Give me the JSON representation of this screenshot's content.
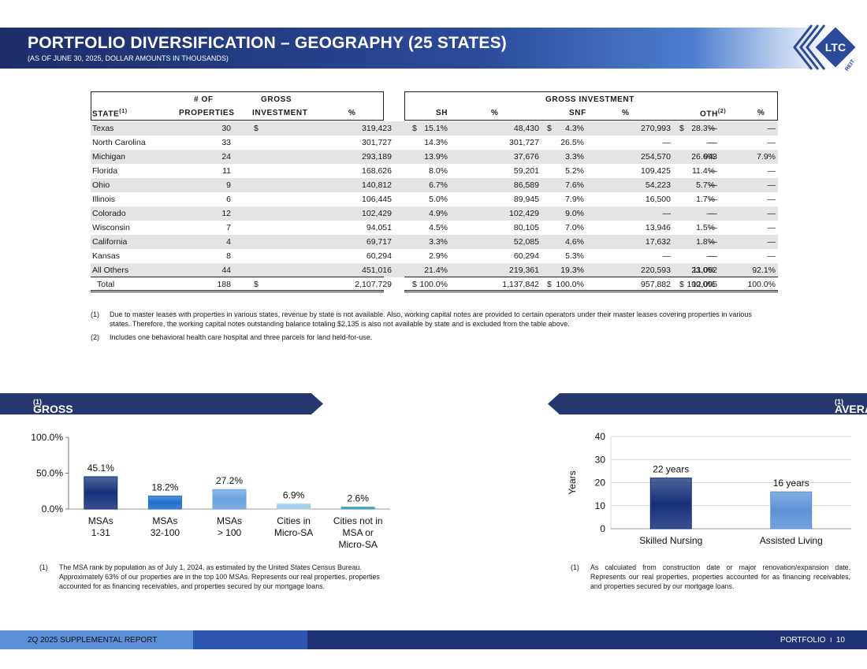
{
  "header": {
    "title": "PORTFOLIO DIVERSIFICATION – GEOGRAPHY (25 STATES)",
    "subtitle": "(AS OF JUNE 30, 2025, DOLLAR AMOUNTS IN THOUSANDS)",
    "logo_text": "LTC",
    "logo_sub": "REIT"
  },
  "table": {
    "headers": {
      "state": "STATE",
      "state_sup": "(1)",
      "num_of": "# OF",
      "properties": "PROPERTIES",
      "gross": "GROSS",
      "investment": "INVESTMENT",
      "pct": "%",
      "gross_investment": "GROSS INVESTMENT",
      "sh": "SH",
      "snf": "SNF",
      "oth": "OTH",
      "oth_sup": "(2)"
    },
    "rows": [
      {
        "state": "Texas",
        "props": "30",
        "d1": "$",
        "inv": "319,423",
        "pct": "15.1%",
        "d2": "$",
        "sh": "48,430",
        "shp": "4.3%",
        "d3": "$",
        "snf": "270,993",
        "snfp": "28.3%",
        "d4": "$",
        "oth": "—",
        "othp": "—"
      },
      {
        "state": "North Carolina",
        "props": "33",
        "d1": "",
        "inv": "301,727",
        "pct": "14.3%",
        "d2": "",
        "sh": "301,727",
        "shp": "26.5%",
        "d3": "",
        "snf": "—",
        "snfp": "—",
        "d4": "",
        "oth": "—",
        "othp": "—"
      },
      {
        "state": "Michigan",
        "props": "24",
        "d1": "",
        "inv": "293,189",
        "pct": "13.9%",
        "d2": "",
        "sh": "37,676",
        "shp": "3.3%",
        "d3": "",
        "snf": "254,570",
        "snfp": "26.6%",
        "d4": "",
        "oth": "943",
        "othp": "7.9%"
      },
      {
        "state": "Florida",
        "props": "11",
        "d1": "",
        "inv": "168,626",
        "pct": "8.0%",
        "d2": "",
        "sh": "59,201",
        "shp": "5.2%",
        "d3": "",
        "snf": "109,425",
        "snfp": "11.4%",
        "d4": "",
        "oth": "—",
        "othp": "—"
      },
      {
        "state": "Ohio",
        "props": "9",
        "d1": "",
        "inv": "140,812",
        "pct": "6.7%",
        "d2": "",
        "sh": "86,589",
        "shp": "7.6%",
        "d3": "",
        "snf": "54,223",
        "snfp": "5.7%",
        "d4": "",
        "oth": "—",
        "othp": "—"
      },
      {
        "state": "Illinois",
        "props": "6",
        "d1": "",
        "inv": "106,445",
        "pct": "5.0%",
        "d2": "",
        "sh": "89,945",
        "shp": "7.9%",
        "d3": "",
        "snf": "16,500",
        "snfp": "1.7%",
        "d4": "",
        "oth": "—",
        "othp": "—"
      },
      {
        "state": "Colorado",
        "props": "12",
        "d1": "",
        "inv": "102,429",
        "pct": "4.9%",
        "d2": "",
        "sh": "102,429",
        "shp": "9.0%",
        "d3": "",
        "snf": "—",
        "snfp": "—",
        "d4": "",
        "oth": "—",
        "othp": "—"
      },
      {
        "state": "Wisconsin",
        "props": "7",
        "d1": "",
        "inv": "94,051",
        "pct": "4.5%",
        "d2": "",
        "sh": "80,105",
        "shp": "7.0%",
        "d3": "",
        "snf": "13,946",
        "snfp": "1.5%",
        "d4": "",
        "oth": "—",
        "othp": "—"
      },
      {
        "state": "California",
        "props": "4",
        "d1": "",
        "inv": "69,717",
        "pct": "3.3%",
        "d2": "",
        "sh": "52,085",
        "shp": "4.6%",
        "d3": "",
        "snf": "17,632",
        "snfp": "1.8%",
        "d4": "",
        "oth": "—",
        "othp": "—"
      },
      {
        "state": "Kansas",
        "props": "8",
        "d1": "",
        "inv": "60,294",
        "pct": "2.9%",
        "d2": "",
        "sh": "60,294",
        "shp": "5.3%",
        "d3": "",
        "snf": "—",
        "snfp": "—",
        "d4": "",
        "oth": "—",
        "othp": "—"
      },
      {
        "state": "All Others",
        "props": "44",
        "d1": "",
        "inv": "451,016",
        "pct": "21.4%",
        "d2": "",
        "sh": "219,361",
        "shp": "19.3%",
        "d3": "",
        "snf": "220,593",
        "snfp": "23.0%",
        "d4": "",
        "oth": "11,062",
        "othp": "92.1%"
      }
    ],
    "total": {
      "state": "Total",
      "props": "188",
      "d1": "$",
      "inv": "2,107,729",
      "pct": "100.0%",
      "d2": "$",
      "sh": "1,137,842",
      "shp": "100.0%",
      "d3": "$",
      "snf": "957,882",
      "snfp": "100.0%",
      "d4": "$",
      "oth": "12,005",
      "othp": "100.0%"
    }
  },
  "notes": [
    {
      "num": "(1)",
      "text": "Due to master leases with properties in various states, revenue by state is not available. Also, working capital notes are provided to certain operators under their master leases covering properties in various states. Therefore, the working capital notes outstanding balance totaling $2,135 is also not available by state and is excluded from the table above."
    },
    {
      "num": "(2)",
      "text": "Includes one behavioral health care hospital and three parcels for land held-for-use."
    }
  ],
  "msa_section": {
    "banner": "GROSS PORTFOLIO BY MSA",
    "banner_sup": "(1)",
    "footnote_num": "(1)",
    "footnote": "The MSA rank by population as of July 1, 2024, as estimated by the United States Census Bureau. Approximately 63% of our properties are in the top 100 MSAs. Represents our real properties, properties accounted for as financing receivables, and properties secured by our mortgage loans."
  },
  "age_section": {
    "banner": "AVERAGE PORTFOLIO AGE",
    "banner_sup": "(1)",
    "footnote_num": "(1)",
    "footnote": "As calculated from construction date or major renovation/expansion date. Represents our real properties, properties accounted for as financing receivables, and properties secured by our mortgage loans."
  },
  "chart_data": [
    {
      "type": "bar",
      "categories": [
        "MSAs\n1-31",
        "MSAs\n32-100",
        "MSAs\n> 100",
        "Cities in\nMicro-SA",
        "Cities not in\nMSA or\nMicro-SA"
      ],
      "values": [
        45.1,
        18.2,
        27.2,
        6.9,
        2.6
      ],
      "labels": [
        "45.1%",
        "18.2%",
        "27.2%",
        "6.9%",
        "2.6%"
      ],
      "colors": [
        "#16307a",
        "#1f6fd0",
        "#6aa3e0",
        "#9fcde8",
        "#3fa0b8"
      ],
      "yticks": [
        "0.0%",
        "50.0%",
        "100.0%"
      ],
      "ylim": [
        0,
        100
      ],
      "title": "",
      "xlabel": "",
      "ylabel": ""
    },
    {
      "type": "bar",
      "categories": [
        "Skilled Nursing",
        "Assisted Living"
      ],
      "values": [
        22,
        16
      ],
      "labels": [
        "22 years",
        "16 years"
      ],
      "colors": [
        "#16307a",
        "#5b93d8"
      ],
      "yticks": [
        "0",
        "10",
        "20",
        "30",
        "40"
      ],
      "ylim": [
        0,
        40
      ],
      "ylabel": "Years",
      "title": "",
      "xlabel": "",
      "grid": true
    }
  ],
  "footer": {
    "left": "2Q 2025 SUPPLEMENTAL REPORT",
    "right_section": "PORTFOLIO",
    "sep": "I",
    "page": "10"
  }
}
